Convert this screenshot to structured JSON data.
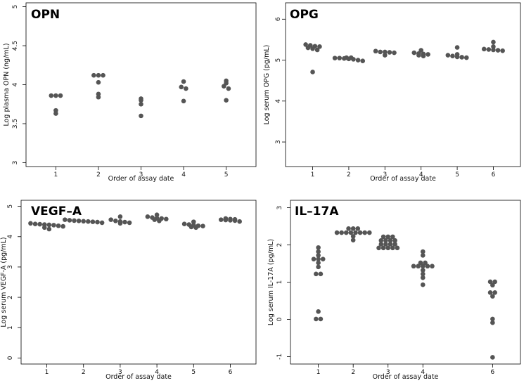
{
  "figure": {
    "marker_color": "#555555",
    "background": "#ffffff"
  },
  "chart_data": [
    {
      "type": "scatter",
      "title": "OPN",
      "xlabel": "Order of assay date",
      "ylabel": "Log plasma OPN (ng/mL)",
      "xlim": [
        0.3,
        5.7
      ],
      "ylim": [
        2.95,
        5.05
      ],
      "xticks": [
        1,
        2,
        3,
        4,
        5
      ],
      "yticks": [
        3,
        3.5,
        4,
        4.5,
        5
      ],
      "ytick_labels": [
        "3",
        "3.5",
        "4",
        "4.5",
        "5"
      ],
      "groups": [
        {
          "x": 1,
          "values": [
            3.86,
            3.86,
            3.86,
            3.67,
            3.63
          ]
        },
        {
          "x": 2,
          "values": [
            4.12,
            4.12,
            4.12,
            4.03,
            3.88,
            3.84
          ]
        },
        {
          "x": 3,
          "values": [
            3.82,
            3.8,
            3.75,
            3.6
          ]
        },
        {
          "x": 4,
          "values": [
            4.04,
            3.97,
            3.95,
            3.79
          ]
        },
        {
          "x": 5,
          "values": [
            4.05,
            4.02,
            3.98,
            3.95,
            3.8
          ]
        }
      ]
    },
    {
      "type": "scatter",
      "title": "OPG",
      "xlabel": "Order of assay date",
      "ylabel": "Log serum OPG (pg/mL)",
      "xlim": [
        0.25,
        6.75
      ],
      "ylim": [
        2.4,
        6.4
      ],
      "xticks": [
        1,
        2,
        3,
        4,
        5,
        6
      ],
      "yticks": [
        3,
        4,
        5,
        6
      ],
      "ytick_labels": [
        "3",
        "4",
        "5",
        "6"
      ],
      "groups": [
        {
          "x": 1,
          "values": [
            5.38,
            5.36,
            5.34,
            5.33,
            5.3,
            5.28,
            5.25,
            4.71
          ]
        },
        {
          "x": 2,
          "values": [
            5.06,
            5.06,
            5.05,
            5.05,
            5.04,
            5.03,
            5.02,
            5.0,
            4.98
          ]
        },
        {
          "x": 3,
          "values": [
            5.22,
            5.2,
            5.2,
            5.19,
            5.18,
            5.12
          ]
        },
        {
          "x": 4,
          "values": [
            5.24,
            5.18,
            5.16,
            5.15,
            5.14,
            5.12,
            5.1
          ]
        },
        {
          "x": 5,
          "values": [
            5.31,
            5.14,
            5.12,
            5.1,
            5.08,
            5.07,
            5.06
          ]
        },
        {
          "x": 6,
          "values": [
            5.44,
            5.33,
            5.27,
            5.26,
            5.25,
            5.24,
            5.23
          ]
        }
      ]
    },
    {
      "type": "scatter",
      "title": "VEGF–A",
      "xlabel": "Order of assay date",
      "ylabel": "Log serum VEGF-A (pg/mL)",
      "xlim": [
        0.3,
        6.7
      ],
      "ylim": [
        -0.2,
        5.2
      ],
      "xticks": [
        1,
        2,
        3,
        4,
        5,
        6
      ],
      "yticks": [
        0,
        1,
        2,
        3,
        4,
        5
      ],
      "ytick_labels": [
        "0",
        "1",
        "2",
        "3",
        "4",
        "5"
      ],
      "groups": [
        {
          "x": 1,
          "values": [
            4.44,
            4.42,
            4.41,
            4.4,
            4.39,
            4.38,
            4.36,
            4.34,
            4.3,
            4.25
          ]
        },
        {
          "x": 2,
          "values": [
            4.56,
            4.54,
            4.53,
            4.52,
            4.51,
            4.5,
            4.49,
            4.48,
            4.46
          ]
        },
        {
          "x": 3,
          "values": [
            4.66,
            4.56,
            4.52,
            4.5,
            4.48,
            4.46,
            4.44
          ]
        },
        {
          "x": 4,
          "values": [
            4.72,
            4.66,
            4.63,
            4.61,
            4.6,
            4.58,
            4.56,
            4.52
          ]
        },
        {
          "x": 5,
          "values": [
            4.49,
            4.42,
            4.4,
            4.38,
            4.36,
            4.35,
            4.32,
            4.3
          ]
        },
        {
          "x": 6,
          "values": [
            4.6,
            4.58,
            4.57,
            4.56,
            4.55,
            4.54,
            4.53,
            4.5
          ]
        }
      ]
    },
    {
      "type": "scatter",
      "title": "IL–17A",
      "xlabel": "Order of assay date",
      "ylabel": "Log serum IL-17A (pg/mL)",
      "xlim": [
        0.2,
        6.8
      ],
      "ylim": [
        -1.2,
        3.2
      ],
      "xticks": [
        1,
        2,
        3,
        4,
        6
      ],
      "yticks": [
        -1,
        0,
        1,
        2,
        3
      ],
      "ytick_labels": [
        "-1",
        "0",
        "1",
        "2",
        "3"
      ],
      "groups": [
        {
          "x": 1,
          "values": [
            1.93,
            1.82,
            1.72,
            1.62,
            1.62,
            1.62,
            1.52,
            1.41,
            1.22,
            1.22,
            0.21,
            0.01,
            0.01
          ]
        },
        {
          "x": 2,
          "values": [
            2.44,
            2.44,
            2.44,
            2.33,
            2.33,
            2.33,
            2.33,
            2.33,
            2.33,
            2.33,
            2.33,
            2.23,
            2.13
          ]
        },
        {
          "x": 3,
          "values": [
            2.22,
            2.22,
            2.22,
            2.12,
            2.12,
            2.12,
            2.12,
            2.02,
            2.02,
            2.02,
            2.02,
            1.92,
            1.92,
            1.92,
            1.92,
            1.92
          ]
        },
        {
          "x": 4,
          "values": [
            1.82,
            1.72,
            1.52,
            1.52,
            1.43,
            1.43,
            1.43,
            1.43,
            1.43,
            1.32,
            1.22,
            1.12,
            0.93
          ]
        },
        {
          "x": 6,
          "values": [
            1.01,
            1.01,
            0.92,
            0.72,
            0.72,
            0.62,
            0.01,
            -0.09,
            -1.02
          ]
        }
      ]
    }
  ]
}
